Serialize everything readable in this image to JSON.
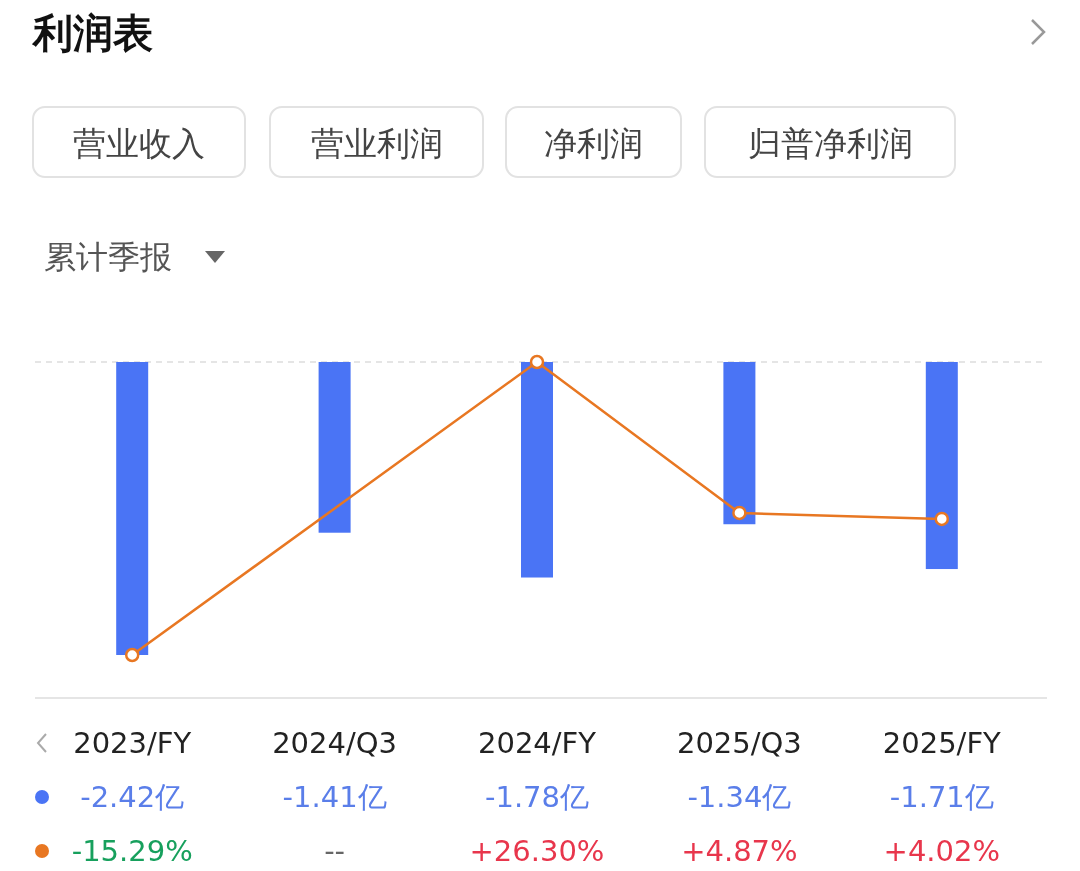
{
  "chart_data": {
    "type": "bar",
    "title": "利润表",
    "annotations": [
      "营业收入",
      "营业利润",
      "净利润",
      "归普净利润",
      "累计季报"
    ],
    "categories": [
      "2023/FY",
      "2024/Q3",
      "2024/FY",
      "2025/Q3",
      "2025/FY"
    ],
    "series": [
      {
        "color": "#4a74f5",
        "values": [
          -2.42,
          -1.41,
          -1.78,
          -1.34,
          -1.71
        ],
        "value_labels": [
          "-2.42亿",
          "-1.41亿",
          "-1.78亿",
          "-1.34亿",
          "-1.71亿"
        ]
      },
      {
        "type": "line",
        "axis": "y2",
        "color": "#e87722",
        "values": [
          -15.29,
          null,
          26.3,
          4.87,
          4.02
        ],
        "value_labels": [
          "-15.29%",
          "--",
          "+26.30%",
          "+4.87%",
          "+4.02%"
        ]
      }
    ],
    "ylim": [
      -2.42,
      0
    ],
    "y2lim": [
      -15.29,
      26.3
    ],
    "marker": "circle",
    "tick_labels": "x",
    "ref_lines": [
      {
        "axis": "y",
        "value": 0,
        "line_style": "dashed",
        "color": "#dddddd"
      }
    ]
  }
}
